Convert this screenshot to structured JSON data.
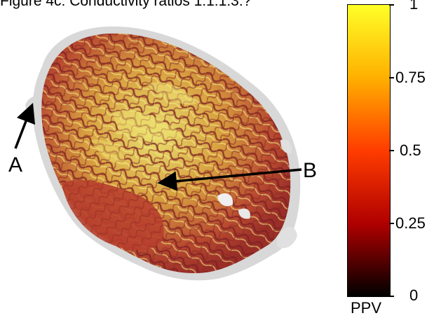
{
  "figure": {
    "title": "Figure 4c: Conductivity ratios 1:1:1:3:?"
  },
  "annotations": {
    "a_label": "A",
    "b_label": "B"
  },
  "colorbar": {
    "label": "PPV",
    "ticks": [
      "1",
      "0.75",
      "0.5",
      "0.25",
      "0"
    ],
    "colors": [
      "#ffff28",
      "#ffb000",
      "#ff3c00",
      "#b00000",
      "#000000"
    ]
  },
  "colors": {
    "tissue_dark": "#a8362e",
    "tissue_mid": "#d66a2c",
    "tissue_light": "#e6dc5a",
    "uncovered": "#d8d8d8"
  }
}
